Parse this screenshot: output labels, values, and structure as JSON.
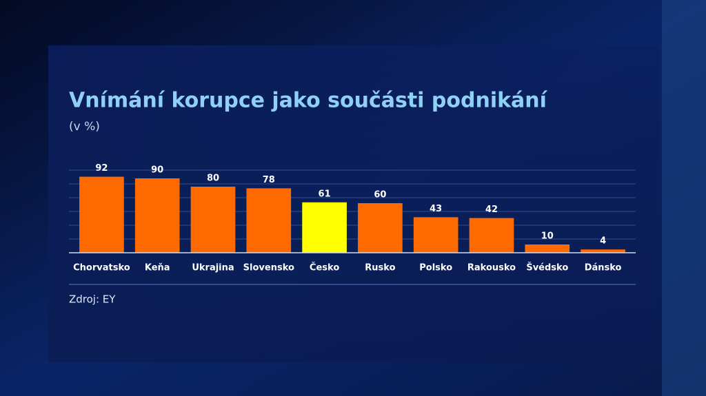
{
  "chart_data": {
    "type": "bar",
    "title": "Vnímání korupce jako součásti podnikání",
    "subtitle": "(v %)",
    "source": "Zdroj: EY",
    "categories": [
      "Chorvatsko",
      "Keňa",
      "Ukrajina",
      "Slovensko",
      "Česko",
      "Rusko",
      "Polsko",
      "Rakousko",
      "Švédsko",
      "Dánsko"
    ],
    "values": [
      92,
      90,
      80,
      78,
      61,
      60,
      43,
      42,
      10,
      4
    ],
    "colors": [
      "#ff6a00",
      "#ff6a00",
      "#ff6a00",
      "#ff6a00",
      "#ffff00",
      "#ff6a00",
      "#ff6a00",
      "#ff6a00",
      "#ff6a00",
      "#ff6a00"
    ],
    "ylim": [
      0,
      100
    ]
  }
}
